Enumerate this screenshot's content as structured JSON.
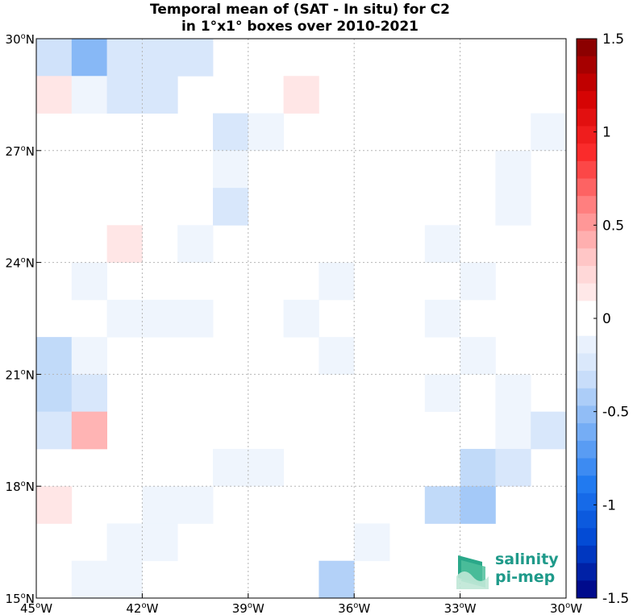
{
  "chart_data": {
    "type": "heatmap",
    "title": [
      "Temporal mean of (SAT - In situ) for C2",
      "in 1°x1° boxes over 2010-2021"
    ],
    "x_ticks": [
      {
        "value": -45,
        "label": "45°W"
      },
      {
        "value": -42,
        "label": "42°W"
      },
      {
        "value": -39,
        "label": "39°W"
      },
      {
        "value": -36,
        "label": "36°W"
      },
      {
        "value": -33,
        "label": "33°W"
      },
      {
        "value": -30,
        "label": "30°W"
      }
    ],
    "y_ticks": [
      {
        "value": 15,
        "label": "15°N"
      },
      {
        "value": 18,
        "label": "18°N"
      },
      {
        "value": 21,
        "label": "21°N"
      },
      {
        "value": 24,
        "label": "24°N"
      },
      {
        "value": 27,
        "label": "27°N"
      },
      {
        "value": 30,
        "label": "30°N"
      }
    ],
    "xlim": [
      -45,
      -30
    ],
    "ylim": [
      15,
      30
    ],
    "grid": true,
    "colorbar": {
      "range": [
        -1.5,
        1.5
      ],
      "levels": 32,
      "ticks": [
        {
          "value": 1.5,
          "label": "1.5"
        },
        {
          "value": 1,
          "label": "1"
        },
        {
          "value": 0.5,
          "label": "0.5"
        },
        {
          "value": 0,
          "label": "0"
        },
        {
          "value": -0.5,
          "label": "-0.5"
        },
        {
          "value": -1,
          "label": "-1"
        },
        {
          "value": -1.5,
          "label": "-1.5"
        }
      ],
      "negative_end_color": "#00007f",
      "positive_end_color": "#7f0000",
      "zero_color": "#ffffff"
    },
    "cells": [
      {
        "lon": -45,
        "lat": 29,
        "value": -0.3
      },
      {
        "lon": -44,
        "lat": 29,
        "value": -0.55
      },
      {
        "lon": -43,
        "lat": 29,
        "value": -0.25
      },
      {
        "lon": -42,
        "lat": 29,
        "value": -0.25
      },
      {
        "lon": -41,
        "lat": 29,
        "value": -0.25
      },
      {
        "lon": -45,
        "lat": 28,
        "value": 0.15
      },
      {
        "lon": -44,
        "lat": 28,
        "value": -0.1
      },
      {
        "lon": -43,
        "lat": 28,
        "value": -0.25
      },
      {
        "lon": -42,
        "lat": 28,
        "value": -0.25
      },
      {
        "lon": -38,
        "lat": 28,
        "value": 0.15
      },
      {
        "lon": -40,
        "lat": 27,
        "value": -0.25
      },
      {
        "lon": -39,
        "lat": 27,
        "value": -0.1
      },
      {
        "lon": -31,
        "lat": 27,
        "value": -0.1
      },
      {
        "lon": -40,
        "lat": 26,
        "value": -0.1
      },
      {
        "lon": -32,
        "lat": 26,
        "value": -0.1
      },
      {
        "lon": -40,
        "lat": 25,
        "value": -0.25
      },
      {
        "lon": -32,
        "lat": 25,
        "value": -0.1
      },
      {
        "lon": -43,
        "lat": 24,
        "value": 0.15
      },
      {
        "lon": -41,
        "lat": 24,
        "value": -0.1
      },
      {
        "lon": -34,
        "lat": 24,
        "value": -0.1
      },
      {
        "lon": -44,
        "lat": 23,
        "value": -0.1
      },
      {
        "lon": -37,
        "lat": 23,
        "value": -0.1
      },
      {
        "lon": -33,
        "lat": 23,
        "value": -0.1
      },
      {
        "lon": -43,
        "lat": 22,
        "value": -0.1
      },
      {
        "lon": -42,
        "lat": 22,
        "value": -0.1
      },
      {
        "lon": -41,
        "lat": 22,
        "value": -0.1
      },
      {
        "lon": -38,
        "lat": 22,
        "value": -0.1
      },
      {
        "lon": -34,
        "lat": 22,
        "value": -0.1
      },
      {
        "lon": -45,
        "lat": 21,
        "value": -0.35
      },
      {
        "lon": -44,
        "lat": 21,
        "value": -0.1
      },
      {
        "lon": -37,
        "lat": 21,
        "value": -0.1
      },
      {
        "lon": -33,
        "lat": 21,
        "value": -0.1
      },
      {
        "lon": -45,
        "lat": 20,
        "value": -0.35
      },
      {
        "lon": -44,
        "lat": 20,
        "value": -0.25
      },
      {
        "lon": -34,
        "lat": 20,
        "value": -0.1
      },
      {
        "lon": -32,
        "lat": 20,
        "value": -0.1
      },
      {
        "lon": -45,
        "lat": 19,
        "value": -0.25
      },
      {
        "lon": -44,
        "lat": 19,
        "value": 0.4
      },
      {
        "lon": -32,
        "lat": 19,
        "value": -0.1
      },
      {
        "lon": -31,
        "lat": 19,
        "value": -0.25
      },
      {
        "lon": -40,
        "lat": 18,
        "value": -0.1
      },
      {
        "lon": -39,
        "lat": 18,
        "value": -0.1
      },
      {
        "lon": -33,
        "lat": 18,
        "value": -0.35
      },
      {
        "lon": -32,
        "lat": 18,
        "value": -0.25
      },
      {
        "lon": -45,
        "lat": 17,
        "value": 0.15
      },
      {
        "lon": -42,
        "lat": 17,
        "value": -0.1
      },
      {
        "lon": -41,
        "lat": 17,
        "value": -0.1
      },
      {
        "lon": -34,
        "lat": 17,
        "value": -0.35
      },
      {
        "lon": -33,
        "lat": 17,
        "value": -0.45
      },
      {
        "lon": -43,
        "lat": 16,
        "value": -0.1
      },
      {
        "lon": -42,
        "lat": 16,
        "value": -0.1
      },
      {
        "lon": -36,
        "lat": 16,
        "value": -0.1
      },
      {
        "lon": -44,
        "lat": 15,
        "value": -0.1
      },
      {
        "lon": -43,
        "lat": 15,
        "value": -0.1
      },
      {
        "lon": -37,
        "lat": 15,
        "value": -0.4
      }
    ]
  },
  "logo": {
    "line1": "salinity",
    "line2": "pi-mep",
    "icon": "wave-layers-icon",
    "color": "#1f9a8a"
  }
}
